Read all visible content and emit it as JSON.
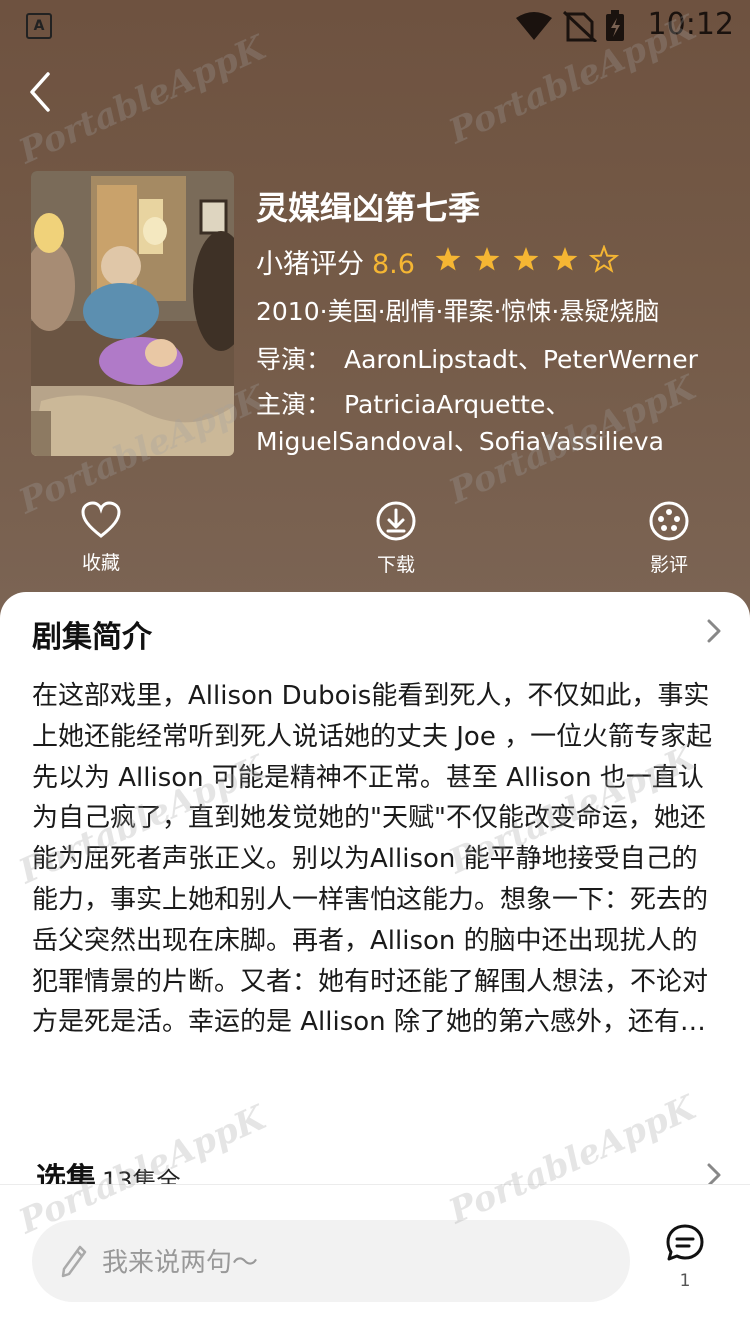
{
  "status_bar": {
    "time": "10:12"
  },
  "show": {
    "title": "灵媒缉凶第七季",
    "rating_label": "小猪评分",
    "rating_value": "8.6",
    "stars": 4,
    "meta": "2010·美国·剧情·罪案·惊悚·悬疑烧脑",
    "director_label": "导演：",
    "director": "AaronLipstadt、PeterWerner",
    "cast_label": "主演：",
    "cast_line1": "PatriciaArquette、",
    "cast_line2": "MiguelSandoval、SofiaVassilieva"
  },
  "actions": {
    "favorite": "收藏",
    "download": "下载",
    "review": "影评"
  },
  "synopsis": {
    "title": "剧集简介",
    "text": " 在这部戏里，Allison Dubois能看到死人，不仅如此，事实上她还能经常听到死人说话她的丈夫 Joe ，一位火箭专家起先以为 Allison 可能是精神不正常。甚至 Allison 也一直认为自己疯了，直到她发觉她的\"天赋\"不仅能改变命运，她还能为屈死者声张正义。别以为Allison 能平静地接受自己的能力，事实上她和别人一样害怕这能力。想象一下：死去的岳父突然出现在床脚。再者，Allison 的脑中还出现扰人的犯罪情景的片断。又者：她有时还能了解围人想法，不论对方是死是活。幸运的是 Allison 除了她的第六感外，还有…"
  },
  "episodes": {
    "title": "选集",
    "count": "13集全"
  },
  "comment": {
    "placeholder": "我来说两句～",
    "count": "1"
  },
  "watermark": "PortableAppK",
  "colors": {
    "accent": "#f5b633"
  }
}
